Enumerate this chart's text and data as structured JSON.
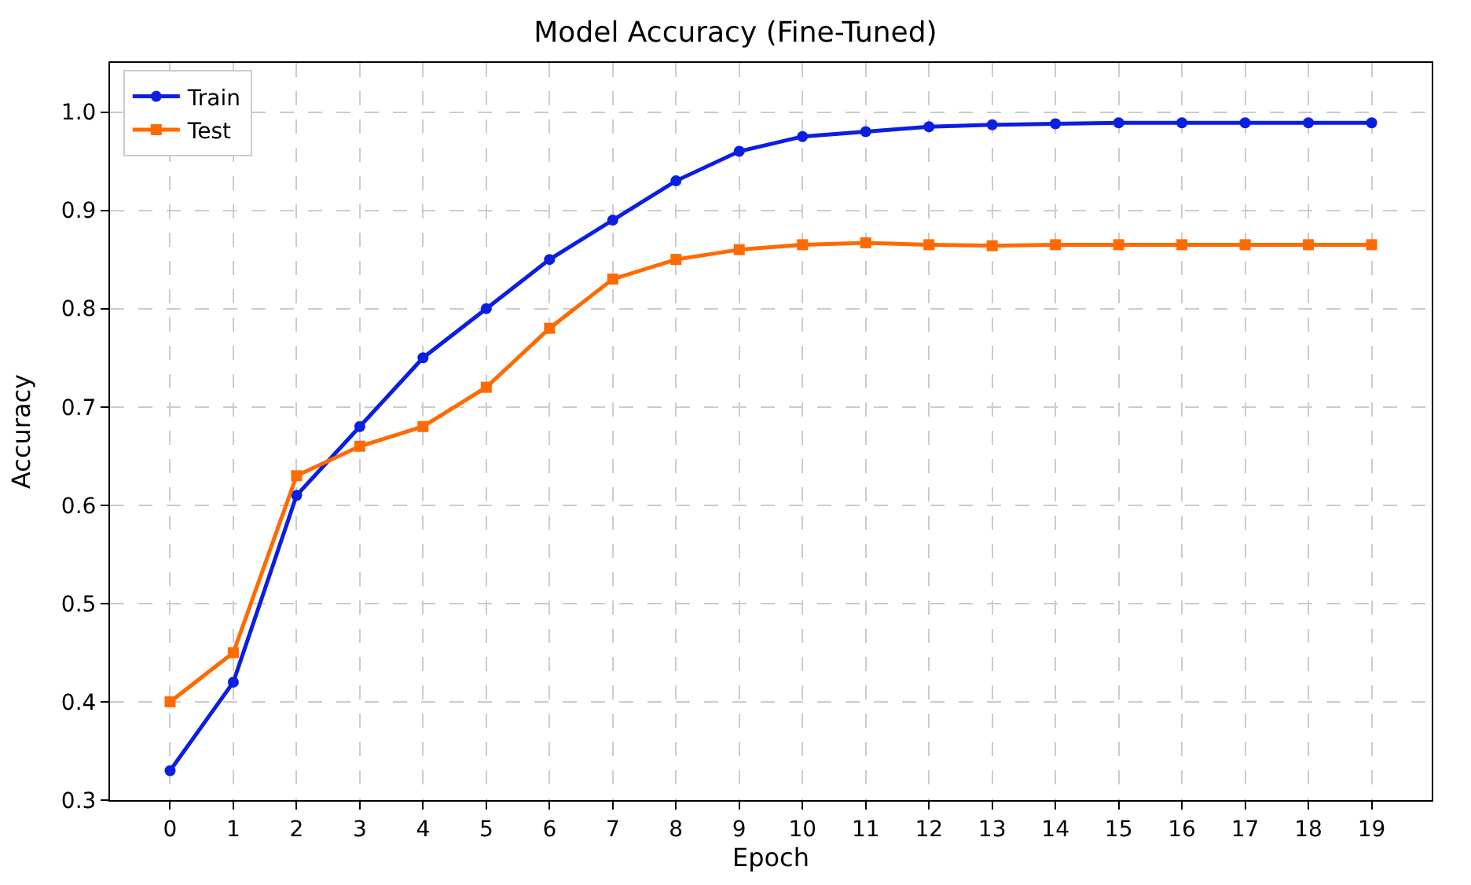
{
  "chart_data": {
    "type": "line",
    "title": "Model Accuracy (Fine-Tuned)",
    "xlabel": "Epoch",
    "ylabel": "Accuracy",
    "x": [
      0,
      1,
      2,
      3,
      4,
      5,
      6,
      7,
      8,
      9,
      10,
      11,
      12,
      13,
      14,
      15,
      16,
      17,
      18,
      19
    ],
    "series": [
      {
        "name": "Train",
        "color": "#0a1fe0",
        "marker": "circle",
        "values": [
          0.33,
          0.42,
          0.61,
          0.68,
          0.75,
          0.8,
          0.85,
          0.89,
          0.93,
          0.96,
          0.975,
          0.98,
          0.985,
          0.987,
          0.988,
          0.989,
          0.989,
          0.989,
          0.989,
          0.989
        ]
      },
      {
        "name": "Test",
        "color": "#ff6a00",
        "marker": "square",
        "values": [
          0.4,
          0.45,
          0.63,
          0.66,
          0.68,
          0.72,
          0.78,
          0.83,
          0.85,
          0.86,
          0.865,
          0.867,
          0.865,
          0.864,
          0.865,
          0.865,
          0.865,
          0.865,
          0.865,
          0.865
        ]
      }
    ],
    "xlim": [
      -0.95,
      19.95
    ],
    "xticks": [
      0,
      1,
      2,
      3,
      4,
      5,
      6,
      7,
      8,
      9,
      10,
      11,
      12,
      13,
      14,
      15,
      16,
      17,
      18,
      19
    ],
    "ylim": [
      0.3,
      1.05
    ],
    "yticks": [
      {
        "value": 0.3,
        "label": "0.3"
      },
      {
        "value": 0.4,
        "label": "0.4"
      },
      {
        "value": 0.5,
        "label": "0.5"
      },
      {
        "value": 0.6,
        "label": "0.6"
      },
      {
        "value": 0.7,
        "label": "0.7"
      },
      {
        "value": 0.8,
        "label": "0.8"
      },
      {
        "value": 0.9,
        "label": "0.9"
      },
      {
        "value": 1.0,
        "label": "1.0"
      }
    ],
    "grid": true,
    "legend": "top left",
    "line_style": "solid"
  }
}
